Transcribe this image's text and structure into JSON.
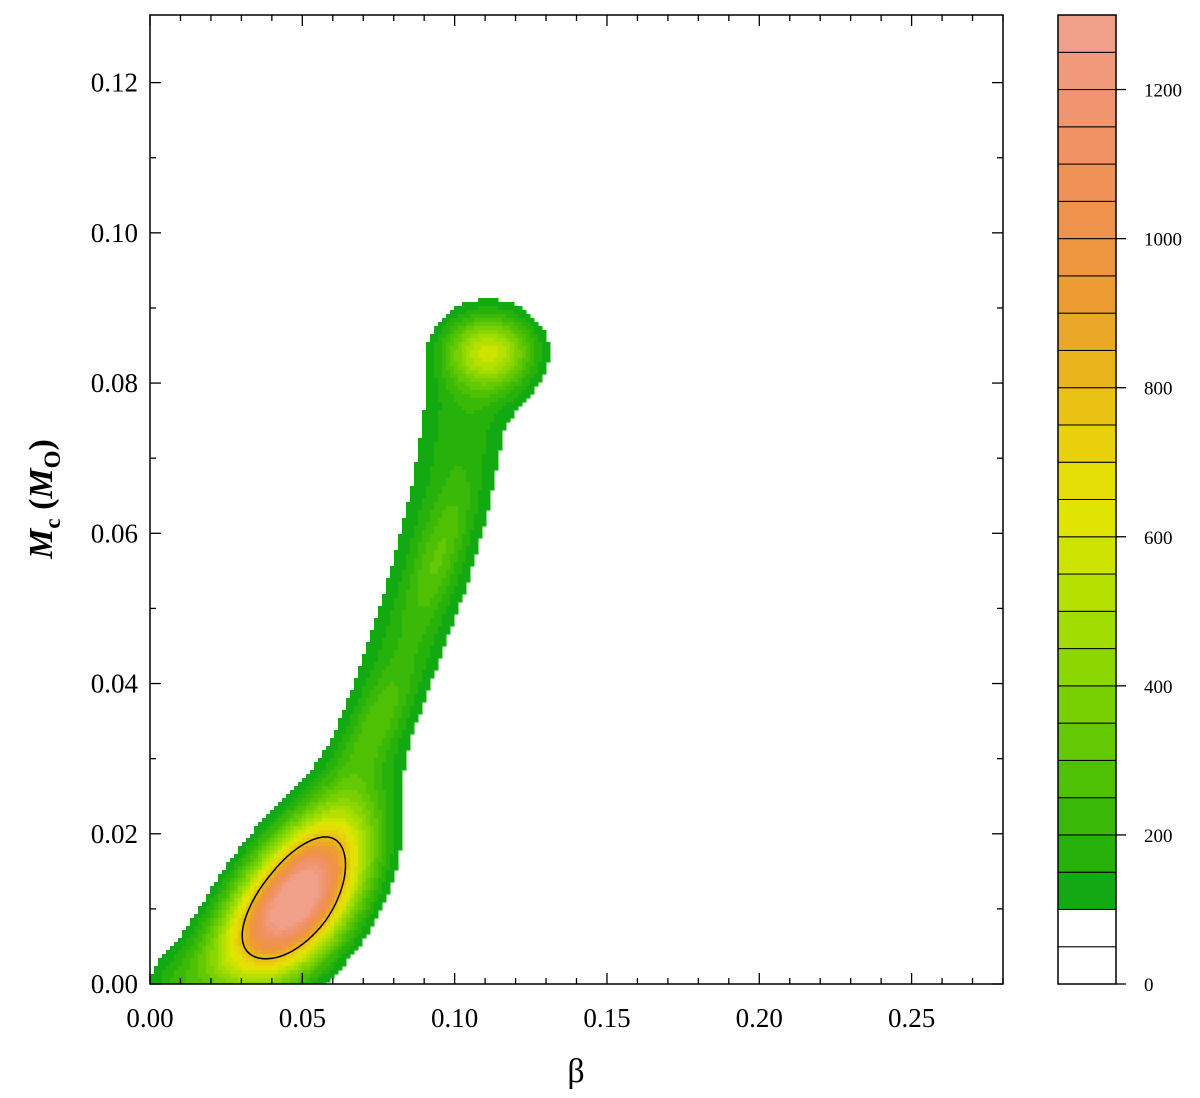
{
  "chart_data": {
    "type": "heatmap",
    "title": "",
    "xlabel": "β",
    "ylabel": {
      "symbol": "M",
      "subscript": "c",
      "unit_symbol": "M",
      "unit_subscript": "O"
    },
    "xlim": [
      0,
      0.28
    ],
    "ylim": [
      0,
      0.129
    ],
    "x_ticks": [
      "0.00",
      "0.05",
      "0.10",
      "0.15",
      "0.20",
      "0.25"
    ],
    "y_ticks": [
      "0.00",
      "0.02",
      "0.04",
      "0.06",
      "0.08",
      "0.10",
      "0.12"
    ],
    "grid": false,
    "density_peaks": [
      {
        "x": 0.048,
        "y": 0.011,
        "value": 1250
      },
      {
        "x": 0.111,
        "y": 0.084,
        "value": 560
      },
      {
        "x": 0.095,
        "y": 0.057,
        "value": 280
      },
      {
        "x": 0.075,
        "y": 0.035,
        "value": 240
      }
    ],
    "ridge": [
      {
        "x": 0.01,
        "y": 0.0
      },
      {
        "x": 0.03,
        "y": 0.006
      },
      {
        "x": 0.048,
        "y": 0.012
      },
      {
        "x": 0.062,
        "y": 0.022
      },
      {
        "x": 0.072,
        "y": 0.032
      },
      {
        "x": 0.082,
        "y": 0.043
      },
      {
        "x": 0.092,
        "y": 0.055
      },
      {
        "x": 0.099,
        "y": 0.066
      },
      {
        "x": 0.103,
        "y": 0.075
      },
      {
        "x": 0.111,
        "y": 0.084
      }
    ],
    "contour_level": 800,
    "colorbar": {
      "min": 0,
      "max": 1300,
      "step": 50,
      "tick_labels": [
        "0",
        "200",
        "400",
        "600",
        "800",
        "1000",
        "1200"
      ],
      "colors": [
        "#ffffff",
        "#ffffff",
        "#12a912",
        "#26b10b",
        "#3ab908",
        "#4ec105",
        "#62c904",
        "#78d003",
        "#8cd702",
        "#a2dd01",
        "#b6e100",
        "#cde300",
        "#e0e500",
        "#e5de05",
        "#e8d00c",
        "#e9c214",
        "#eab41d",
        "#eba828",
        "#ec9c33",
        "#ee963f",
        "#ef924b",
        "#f09157",
        "#f09263",
        "#f0956f",
        "#f0997b",
        "#f09f88"
      ]
    }
  }
}
